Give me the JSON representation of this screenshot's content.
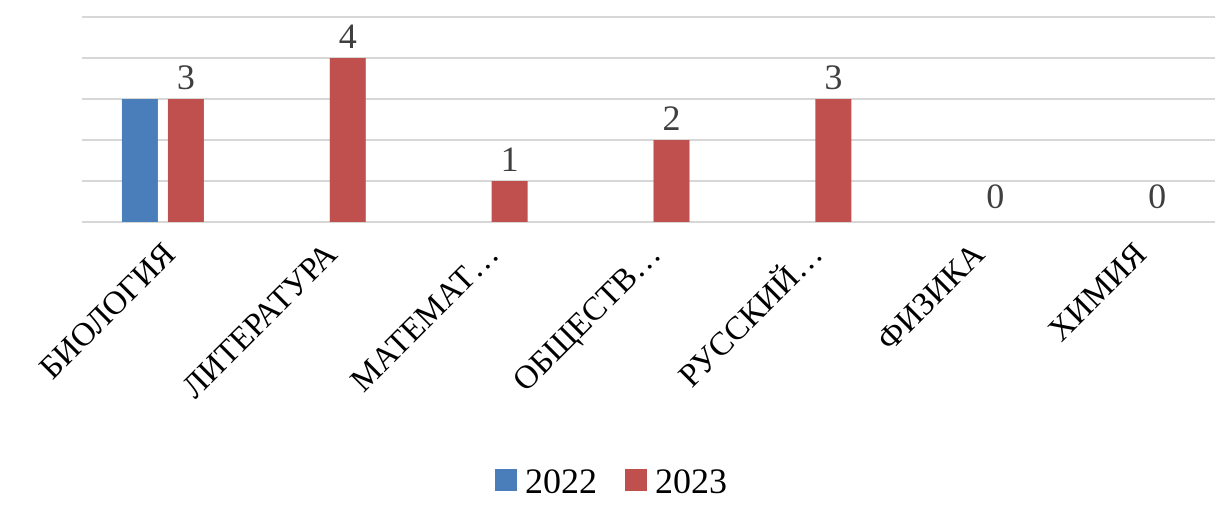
{
  "chart_data": {
    "type": "bar",
    "categories": [
      "БИОЛОГИЯ",
      "ЛИТЕРАТУРА",
      "МАТЕМАТ…",
      "ОБЩЕСТВ…",
      "РУССКИЙ…",
      "ФИЗИКА",
      "ХИМИЯ"
    ],
    "series": [
      {
        "name": "2022",
        "values": [
          3,
          0,
          0,
          0,
          0,
          0,
          0
        ],
        "color": "#4a7ebb"
      },
      {
        "name": "2023",
        "values": [
          3,
          4,
          1,
          2,
          3,
          0,
          0
        ],
        "color": "#c0504d"
      }
    ],
    "data_labels": [
      {
        "series": "2023",
        "values": [
          "3",
          "4",
          "1",
          "2",
          "3",
          "0",
          "0"
        ]
      }
    ],
    "title": "",
    "xlabel": "",
    "ylabel": "",
    "ylim": [
      0,
      5
    ],
    "grid": true,
    "legend_position": "bottom"
  }
}
